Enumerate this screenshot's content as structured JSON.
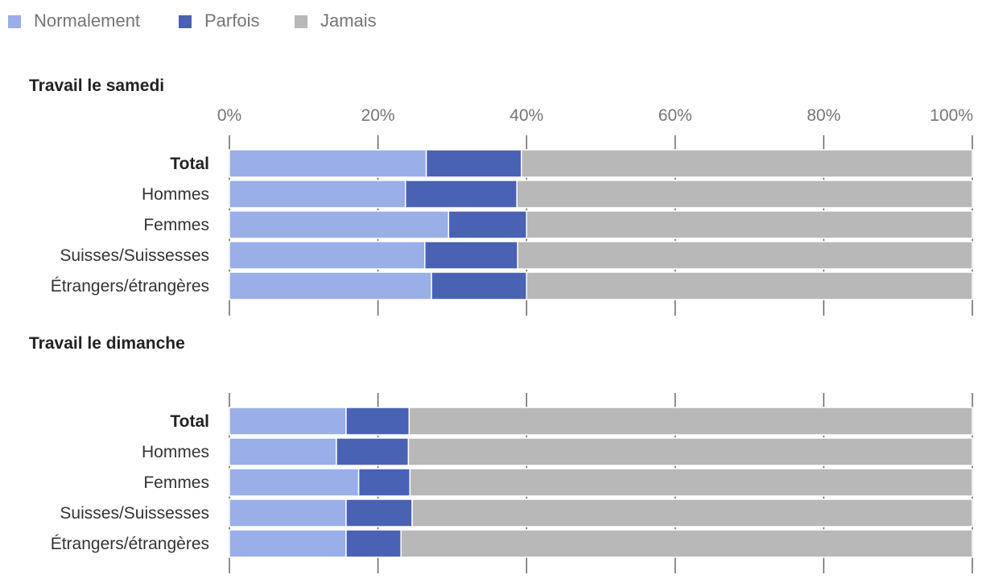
{
  "chart_data": {
    "type": "bar",
    "orientation": "horizontal",
    "stacked": true,
    "unit": "%",
    "xlim": [
      0,
      100
    ],
    "ticks": [
      "0%",
      "20%",
      "40%",
      "60%",
      "80%",
      "100%"
    ],
    "legend": {
      "placement": "top-left",
      "items": [
        {
          "label": "Normalement",
          "color": "#9aaee8"
        },
        {
          "label": "Parfois",
          "color": "#4a62b4"
        },
        {
          "label": "Jamais",
          "color": "#b8b8b8"
        }
      ]
    },
    "panels": [
      {
        "title": "Travail le samedi",
        "show_tick_labels": true,
        "categories": [
          "Total",
          "Hommes",
          "Femmes",
          "Suisses/Suissesses",
          "Étrangers/étrangères"
        ],
        "series": [
          {
            "name": "Normalement",
            "values": [
              26.5,
              23.7,
              29.5,
              26.3,
              27.2
            ]
          },
          {
            "name": "Parfois",
            "values": [
              12.8,
              15.0,
              10.5,
              12.5,
              12.8
            ]
          },
          {
            "name": "Jamais",
            "values": [
              60.7,
              61.3,
              60.0,
              61.2,
              60.0
            ]
          }
        ]
      },
      {
        "title": "Travail le dimanche",
        "show_tick_labels": false,
        "categories": [
          "Total",
          "Hommes",
          "Femmes",
          "Suisses/Suissesses",
          "Étrangers/étrangères"
        ],
        "series": [
          {
            "name": "Normalement",
            "values": [
              15.7,
              14.4,
              17.4,
              15.7,
              15.7
            ]
          },
          {
            "name": "Parfois",
            "values": [
              8.5,
              9.7,
              6.9,
              8.9,
              7.4
            ]
          },
          {
            "name": "Jamais",
            "values": [
              75.8,
              75.9,
              75.7,
              75.4,
              76.9
            ]
          }
        ]
      }
    ]
  }
}
